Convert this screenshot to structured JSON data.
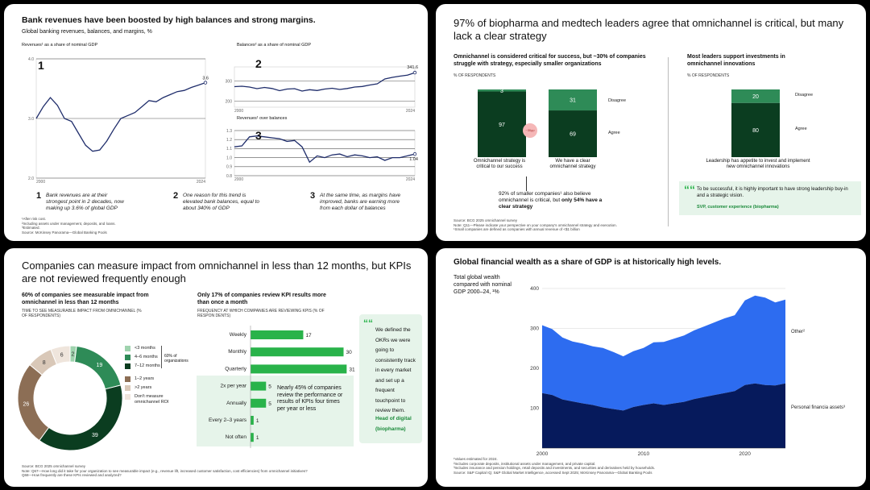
{
  "colors": {
    "green_dark": "#0b3d20",
    "green_mid": "#2e8b57",
    "green_bright": "#29b34a",
    "green_pale": "#e6f4ea",
    "brown": "#8c6e55",
    "brown_light": "#d9c8b8",
    "blue_dark": "#1e3bb8",
    "blue_light": "#2d6cf0",
    "navy": "#061a5c"
  },
  "panel1": {
    "title": "Bank revenues have been boosted by high balances and strong margins.",
    "subtitle": "Global banking revenues, balances, and margins,  %",
    "chart1_label": "Revenues¹ as a share of nominal GDP",
    "chart2_label": "Balances² as a share of nominal GDP",
    "chart3_label": "Revenues¹ over balances",
    "markers": [
      "1",
      "2",
      "3"
    ],
    "notes": [
      {
        "num": "1",
        "text": "Bank revenues are at their strongest point in 2 decades, now making up 3.6% of global GDP"
      },
      {
        "num": "2",
        "text": "One reason for this trend is elevated bank balances, equal to about 340% of GDP"
      },
      {
        "num": "3",
        "text": "At the same time, as margins have improved, banks are earning more from each dollar of balances"
      }
    ],
    "footnotes": [
      "¹After risk cost.",
      "²Including assets under management, deposits, and loans.",
      "³Estimated.",
      "Source: McKinsey Panorama—Global Banking Pools"
    ]
  },
  "panel2": {
    "title": "97% of biopharma and medtech leaders agree that omnichannel is critical, but many lack a clear strategy",
    "left_heading": "Omnichannel is considered critical for success, but ~30% of companies struggle with strategy, especially smaller organizations",
    "left_caption": "% OF RESPONDENTS",
    "right_heading": "Most leaders support investments in omnichannel innovations",
    "right_caption": "% OF RESPONDENTS",
    "gap_badge": "~30pp",
    "legend_disagree": "Disagree",
    "legend_agree": "Agree",
    "bar_labels": [
      "Omnichannel strategy is critical to our success",
      "We have a clear omnichannel strategy",
      "Leadership has appetite to invest and implement new omnichannel innovations"
    ],
    "callout_normal": "92% of smaller companies¹ also believe omnichannel is critical, but ",
    "callout_bold": "only 54% have a clear strategy",
    "quote": "To be successful, it is highly important to have strong leadership buy-in and a strategic vision.",
    "quote_attr": "SVP, customer experience  (biopharma)",
    "quote_mark": "““",
    "footnotes": [
      "Source: BCG 2025 omnichannel survey",
      "Note: Q11—Please indicate your perspective on your company's omnichannel strategy and execution.",
      "¹Small companies are defined as companies with annual revenue of <$1 billion"
    ]
  },
  "panel3": {
    "title": "Companies can measure impact from omnichannel in less than 12 months, but KPIs are not reviewed frequently enough",
    "left_heading": "60% of companies see measurable impact from omnichannel in less than 12 months",
    "left_caption": "TIME TO SEE MEASURABLE IMPACT FROM OMNICHANNEL   (% OF RESPONDENTS)",
    "right_heading": "Only 17% of companies review KPI results more than once a month",
    "right_caption": "FREQUENCY AT WHICH COMPANIES ARE REVIEWING KPIS   (% OF RESPON DENTS)",
    "bracket_label": "60% of organizations",
    "callout": "Nearly 45% of companies review the performance or results of KPIs four times per year or less",
    "quote": "We defined the OKRs we were going to consistently track in every market and set up a frequent touchpoint to review them.",
    "quote_attr": "Head of digital (biopharma)",
    "quote_mark": "““",
    "footnotes": [
      "Source: BCG 2025 omnichannel survey",
      "Note: Q67—How long did it take for your organization to see measurable impact   (e.g.,  revenue lift, increased customer satisfaction, cost efficiencies)   from omnichannel initiatives?",
      "Q68—How frequently are these KPIs reviewed and analyzed?"
    ]
  },
  "panel4": {
    "title": "Global financial wealth as a share of GDP is at historically high levels.",
    "ylabel": "Total global wealth compared with nominal GDP 2000–24,  ¹%",
    "series_labels": [
      "Other²",
      "Personal financia assets³"
    ],
    "footnotes": [
      "¹Values estimated for 2024.",
      "²Includes corporate deposits, institutional assets under management, and private capital.",
      "³Includes insurance and pension holdings, retail deposits and investments, and securities and derivatives held by households.",
      "Source: S&P Capital IQ; S&P Global Market Intelligence, accessed Sept 2025; McKinsey Panorama—Global Banking Pools"
    ]
  },
  "chart_data": [
    {
      "id": "revenues",
      "type": "line",
      "title": "Revenues¹ as a share of nominal GDP",
      "x": [
        2000,
        2001,
        2002,
        2003,
        2004,
        2005,
        2006,
        2007,
        2008,
        2009,
        2010,
        2011,
        2012,
        2013,
        2014,
        2015,
        2016,
        2017,
        2018,
        2019,
        2020,
        2021,
        2022,
        2023,
        2024
      ],
      "values": [
        3.0,
        3.2,
        3.35,
        3.22,
        3.0,
        2.95,
        2.75,
        2.55,
        2.45,
        2.47,
        2.62,
        2.82,
        3.0,
        3.05,
        3.1,
        3.2,
        3.3,
        3.28,
        3.35,
        3.4,
        3.45,
        3.47,
        3.52,
        3.56,
        3.6
      ],
      "yticks": [
        2.0,
        3.0,
        4.0
      ],
      "ytick_labels": [
        "2.0",
        "3.0",
        "4.0"
      ],
      "ylim": [
        2.0,
        4.0
      ],
      "xticks": [
        2000,
        2024
      ],
      "end_label": "3.6"
    },
    {
      "id": "balances",
      "type": "line",
      "title": "Balances² as a share of nominal GDP",
      "x": [
        2000,
        2001,
        2002,
        2003,
        2004,
        2005,
        2006,
        2007,
        2008,
        2009,
        2010,
        2011,
        2012,
        2013,
        2014,
        2015,
        2016,
        2017,
        2018,
        2019,
        2020,
        2021,
        2022,
        2023,
        2024
      ],
      "values": [
        272,
        274,
        270,
        262,
        268,
        263,
        252,
        260,
        262,
        250,
        257,
        253,
        260,
        264,
        258,
        263,
        270,
        273,
        280,
        286,
        310,
        318,
        324,
        329,
        341.6
      ],
      "yticks": [
        200,
        300
      ],
      "ytick_labels": [
        "200",
        "300"
      ],
      "ylim": [
        170,
        370
      ],
      "xticks": [
        2000,
        2024
      ],
      "end_label": "341.6"
    },
    {
      "id": "margins",
      "type": "line",
      "title": "Revenues¹ over balances",
      "x": [
        2000,
        2001,
        2002,
        2003,
        2004,
        2005,
        2006,
        2007,
        2008,
        2009,
        2010,
        2011,
        2012,
        2013,
        2014,
        2015,
        2016,
        2017,
        2018,
        2019,
        2020,
        2021,
        2022,
        2023,
        2024
      ],
      "values": [
        1.12,
        1.13,
        1.23,
        1.24,
        1.23,
        1.22,
        1.21,
        1.18,
        1.19,
        1.12,
        0.95,
        1.02,
        1.0,
        1.03,
        1.04,
        1.01,
        1.03,
        1.02,
        1.0,
        1.01,
        0.97,
        1.0,
        1.0,
        1.02,
        1.04
      ],
      "yticks": [
        0.8,
        0.9,
        1.0,
        1.1,
        1.2,
        1.3
      ],
      "ytick_labels": [
        "0.8",
        "0.9",
        "1.0",
        "1.1",
        "1.2",
        "1.3"
      ],
      "ylim": [
        0.8,
        1.3
      ],
      "xticks": [
        2000,
        2024
      ],
      "end_label": "1.04"
    },
    {
      "id": "critical",
      "type": "stacked_bar",
      "categories": [
        "Omnichannel strategy is critical to our success",
        "We have a clear omnichannel strategy"
      ],
      "series": [
        {
          "name": "Agree",
          "values": [
            97,
            69
          ]
        },
        {
          "name": "Disagree",
          "values": [
            3,
            31
          ]
        }
      ]
    },
    {
      "id": "invest",
      "type": "stacked_bar",
      "categories": [
        "Leadership has appetite to invest and implement new omnichannel innovations"
      ],
      "series": [
        {
          "name": "Agree",
          "values": [
            80
          ]
        },
        {
          "name": "Disagree",
          "values": [
            20
          ]
        }
      ]
    },
    {
      "id": "impact_time",
      "type": "pie",
      "labels": [
        "<3 months",
        "4–6 months",
        "7–12 months",
        "1–2 years",
        ">2 years",
        "Don't measure omnichannel ROI"
      ],
      "values": [
        2,
        19,
        39,
        26,
        8,
        6
      ]
    },
    {
      "id": "kpi_freq",
      "type": "bar",
      "orientation": "horizontal",
      "categories": [
        "Weekly",
        "Monthly",
        "Quarterly",
        "2x per year",
        "Annually",
        "Every 2–3 years",
        "Not often"
      ],
      "values": [
        17,
        30,
        31,
        5,
        5,
        1,
        1
      ]
    },
    {
      "id": "wealth",
      "type": "area",
      "x": [
        2000,
        2001,
        2002,
        2003,
        2004,
        2005,
        2006,
        2007,
        2008,
        2009,
        2010,
        2011,
        2012,
        2013,
        2014,
        2015,
        2016,
        2017,
        2018,
        2019,
        2020,
        2021,
        2022,
        2023,
        2024
      ],
      "series": [
        {
          "name": "Personal financia assets³",
          "values": [
            138,
            133,
            122,
            117,
            112,
            108,
            102,
            98,
            94,
            103,
            108,
            112,
            108,
            112,
            116,
            123,
            128,
            133,
            138,
            143,
            158,
            162,
            158,
            157,
            162
          ]
        },
        {
          "name": "Other²",
          "values": [
            170,
            165,
            155,
            150,
            150,
            147,
            149,
            143,
            136,
            140,
            143,
            153,
            158,
            162,
            166,
            172,
            177,
            182,
            187,
            190,
            212,
            220,
            219,
            208,
            210
          ]
        }
      ],
      "yticks": [
        100,
        200,
        300,
        400
      ],
      "ylim": [
        0,
        420
      ],
      "xticks": [
        2000,
        2010,
        2020
      ]
    }
  ]
}
